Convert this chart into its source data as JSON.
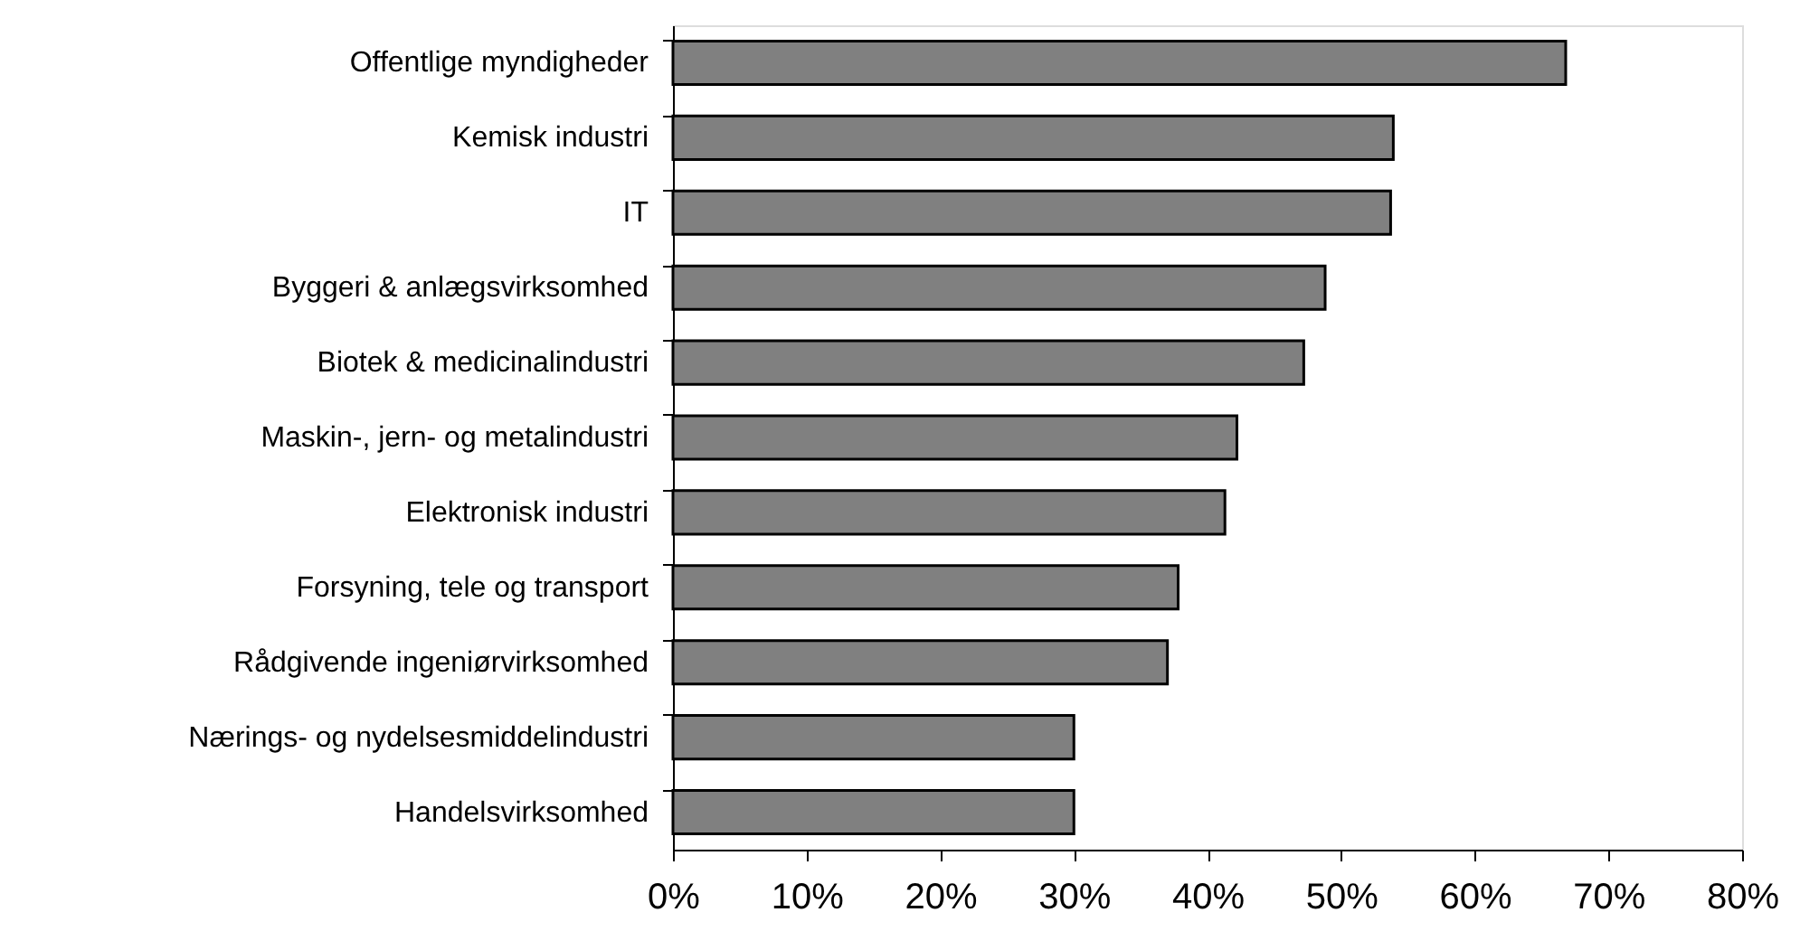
{
  "chart_data": {
    "type": "bar",
    "orientation": "horizontal",
    "categories": [
      "Offentlige myndigheder",
      "Kemisk industri",
      "IT",
      "Byggeri & anlægsvirksomhed",
      "Biotek & medicinalindustri",
      "Maskin-, jern- og metalindustri",
      "Elektronisk industri",
      "Forsyning, tele og transport",
      "Rådgivende ingeniørvirksomhed",
      "Nærings- og nydelsesmiddelindustri",
      "Handelsvirksomhed"
    ],
    "values": [
      66.8,
      53.9,
      53.7,
      48.8,
      47.2,
      42.2,
      41.3,
      37.8,
      37.0,
      30.0,
      30.0
    ],
    "color": "#808080",
    "xlim": [
      0,
      80
    ],
    "xticks": [
      {
        "value": 0,
        "label": "0%"
      },
      {
        "value": 10,
        "label": "10%"
      },
      {
        "value": 20,
        "label": "20%"
      },
      {
        "value": 30,
        "label": "30%"
      },
      {
        "value": 40,
        "label": "40%"
      },
      {
        "value": 50,
        "label": "50%"
      },
      {
        "value": 60,
        "label": "60%"
      },
      {
        "value": 70,
        "label": "70%"
      },
      {
        "value": 80,
        "label": "80%"
      }
    ],
    "grid": false
  }
}
